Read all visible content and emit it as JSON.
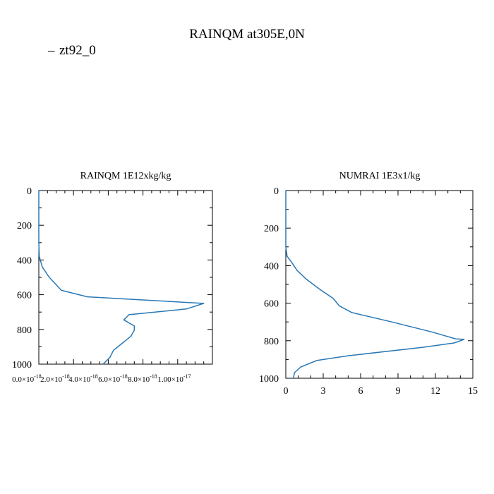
{
  "chart_data": {
    "type": "line",
    "title": "RAINQM at305E,0N",
    "series_color": "#2878b5",
    "legend": {
      "label": "zt92_0",
      "marker": "–",
      "placement": "top-left"
    },
    "panels": [
      {
        "id": "rainqm",
        "title": "RAINQM  1E12xkg/kg",
        "xlim": [
          0,
          1e-17
        ],
        "ylim": [
          1000,
          0
        ],
        "y_ticks": [
          0,
          200,
          400,
          600,
          800,
          1000
        ],
        "y_tick_labels": [
          "0",
          "200",
          "400",
          "600",
          "800",
          "1000"
        ],
        "x_ticks": [
          0,
          2e-18,
          4e-18,
          6e-18,
          8e-18,
          1e-17
        ],
        "x_tick_labels": [
          {
            "mant": "0.0×10",
            "exp": "-18"
          },
          {
            "mant": "2.0×10",
            "exp": "-18"
          },
          {
            "mant": "4.0×10",
            "exp": "-18"
          },
          {
            "mant": "6.0×10",
            "exp": "-18"
          },
          {
            "mant": "8.0×10",
            "exp": "-18"
          },
          {
            "mant": "1.00×10",
            "exp": "-17"
          }
        ],
        "x_minor_per_major": 4,
        "y_minor_step": 100,
        "series": [
          {
            "name": "zt92_0",
            "points": [
              [
                0,
                0
              ],
              [
                0,
                100
              ],
              [
                0,
                200
              ],
              [
                0,
                300
              ],
              [
                3e-20,
                380
              ],
              [
                2e-19,
                440
              ],
              [
                6e-19,
                500
              ],
              [
                1.3e-18,
                575
              ],
              [
                2.8e-18,
                612
              ],
              [
                9.5e-18,
                650
              ],
              [
                8.5e-18,
                682
              ],
              [
                5.2e-18,
                715
              ],
              [
                4.9e-18,
                745
              ],
              [
                5.5e-18,
                780
              ],
              [
                5.5e-18,
                805
              ],
              [
                5.3e-18,
                840
              ],
              [
                4.8e-18,
                880
              ],
              [
                4.3e-18,
                920
              ],
              [
                4.1e-18,
                960
              ],
              [
                3.7e-18,
                1000
              ]
            ]
          }
        ]
      },
      {
        "id": "numrai",
        "title": "NUMRAI  1E3x1/kg",
        "xlim": [
          0,
          15
        ],
        "ylim": [
          1000,
          0
        ],
        "y_ticks": [
          0,
          200,
          400,
          600,
          800,
          1000
        ],
        "y_tick_labels": [
          "0",
          "200",
          "400",
          "600",
          "800",
          "1000"
        ],
        "x_ticks": [
          0,
          3,
          6,
          9,
          12,
          15
        ],
        "x_tick_labels": [
          "0",
          "3",
          "6",
          "9",
          "12",
          "15"
        ],
        "x_minor_per_major": 3,
        "y_minor_step": 100,
        "series": [
          {
            "name": "zt92_0",
            "points": [
              [
                0,
                0
              ],
              [
                0,
                100
              ],
              [
                0,
                200
              ],
              [
                0,
                300
              ],
              [
                0.1,
                350
              ],
              [
                0.5,
                385
              ],
              [
                0.9,
                425
              ],
              [
                1.6,
                470
              ],
              [
                2.7,
                525
              ],
              [
                3.8,
                575
              ],
              [
                4.3,
                615
              ],
              [
                5.3,
                650
              ],
              [
                8.5,
                700
              ],
              [
                11.8,
                755
              ],
              [
                13.6,
                790
              ],
              [
                14.3,
                793
              ],
              [
                13.5,
                812
              ],
              [
                11.0,
                835
              ],
              [
                5.0,
                880
              ],
              [
                2.5,
                905
              ],
              [
                1.2,
                940
              ],
              [
                0.7,
                970
              ],
              [
                0.6,
                1000
              ]
            ]
          }
        ]
      }
    ]
  }
}
